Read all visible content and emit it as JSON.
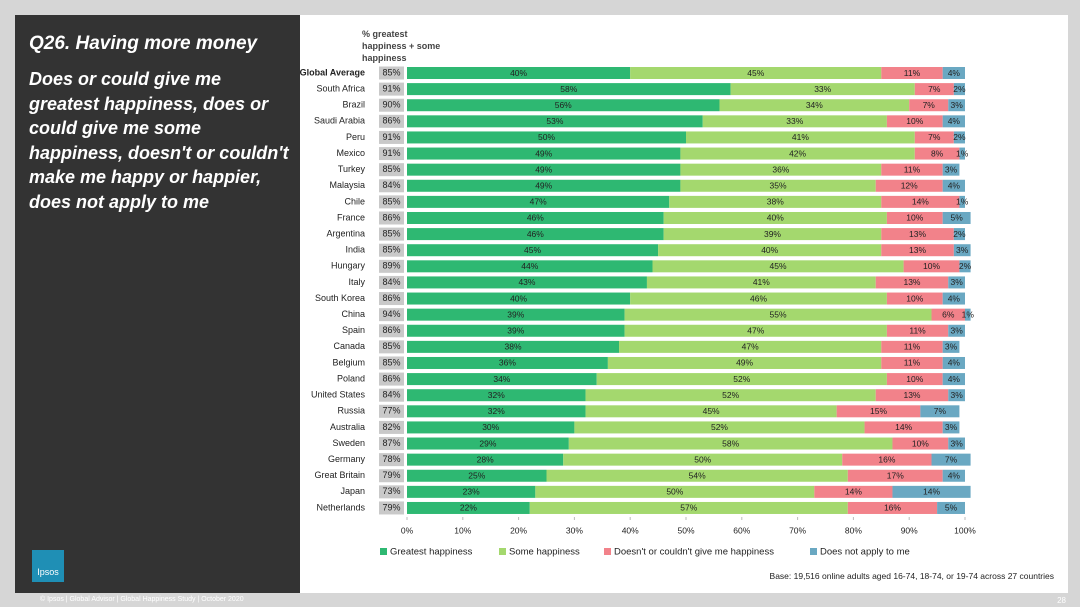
{
  "slide": {
    "title": "Q26. Having more money",
    "question": "Does or could give me greatest happiness, does or could give me some happiness, doesn't or couldn't make me happy or happier, does not apply to me",
    "base": "Base: 19,516 online adults aged 16-74, 18-74, or 19-74 across 27 countries",
    "footer": "© Ipsos | Global Advisor | Global Happiness Study | October 2020",
    "page": "28",
    "logo": "Ipsos"
  },
  "chart_data": {
    "type": "stacked-bar-horizontal",
    "categories": [
      "Global Average",
      "South Africa",
      "Brazil",
      "Saudi Arabia",
      "Peru",
      "Mexico",
      "Turkey",
      "Malaysia",
      "Chile",
      "France",
      "Argentina",
      "India",
      "Hungary",
      "Italy",
      "South Korea",
      "China",
      "Spain",
      "Canada",
      "Belgium",
      "Poland",
      "United States",
      "Russia",
      "Australia",
      "Sweden",
      "Germany",
      "Great Britain",
      "Japan",
      "Netherlands"
    ],
    "totals": {
      "label": "% greatest happiness + some happiness",
      "values": [
        85,
        91,
        90,
        86,
        91,
        91,
        85,
        84,
        85,
        86,
        85,
        85,
        89,
        84,
        86,
        94,
        86,
        85,
        85,
        86,
        84,
        77,
        82,
        87,
        78,
        79,
        73,
        79
      ],
      "value_labels": [
        "85%",
        "91%",
        "90%",
        "86%",
        "91%",
        "91%",
        "85%",
        "84%",
        "85%",
        "86%",
        "85%",
        "85%",
        "89%",
        "84%",
        "86%",
        "94%",
        "86%",
        "85%",
        "85%",
        "86%",
        "84%",
        "77%",
        "82%",
        "87%",
        "78%",
        "79%",
        "73%",
        "79%"
      ]
    },
    "series": [
      {
        "name": "Greatest happiness",
        "color": "#2eb872",
        "values": [
          40,
          58,
          56,
          53,
          50,
          49,
          49,
          49,
          47,
          46,
          46,
          45,
          44,
          43,
          40,
          39,
          39,
          38,
          36,
          34,
          32,
          32,
          30,
          29,
          28,
          25,
          23,
          22
        ],
        "value_labels": [
          "40%",
          "58%",
          "56%",
          "53%",
          "50%",
          "49%",
          "49%",
          "49%",
          "47%",
          "46%",
          "46%",
          "45%",
          "44%",
          "43%",
          "40%",
          "39%",
          "39%",
          "38%",
          "36%",
          "34%",
          "32%",
          "32%",
          "30%",
          "29%",
          "28%",
          "25%",
          "23%",
          "22%"
        ]
      },
      {
        "name": "Some happiness",
        "color": "#a4d86e",
        "values": [
          45,
          33,
          34,
          33,
          41,
          42,
          36,
          35,
          38,
          40,
          39,
          40,
          45,
          41,
          46,
          55,
          47,
          47,
          49,
          52,
          52,
          45,
          52,
          58,
          50,
          54,
          50,
          57
        ],
        "value_labels": [
          "45%",
          "33%",
          "34%",
          "33%",
          "41%",
          "42%",
          "36%",
          "35%",
          "38%",
          "40%",
          "39%",
          "40%",
          "45%",
          "41%",
          "46%",
          "55%",
          "47%",
          "47%",
          "49%",
          "52%",
          "52%",
          "45%",
          "52%",
          "58%",
          "50%",
          "54%",
          "50%",
          "57%"
        ]
      },
      {
        "name": "Doesn't or couldn't give me happiness",
        "color": "#f2828a",
        "values": [
          11,
          7,
          7,
          10,
          7,
          8,
          11,
          12,
          14,
          10,
          13,
          13,
          10,
          13,
          10,
          6,
          11,
          11,
          11,
          10,
          13,
          15,
          14,
          10,
          16,
          17,
          14,
          16
        ],
        "value_labels": [
          "11%",
          "7%",
          "7%",
          "10%",
          "7%",
          "8%",
          "11%",
          "12%",
          "14%",
          "10%",
          "13%",
          "13%",
          "10%",
          "13%",
          "10%",
          "6%",
          "11%",
          "11%",
          "11%",
          "10%",
          "13%",
          "15%",
          "14%",
          "10%",
          "16%",
          "17%",
          "14%",
          "16%"
        ]
      },
      {
        "name": "Does not apply to me",
        "color": "#6aa8c2",
        "values": [
          4,
          2,
          3,
          4,
          2,
          1,
          3,
          4,
          1,
          5,
          2,
          3,
          2,
          3,
          4,
          1,
          3,
          3,
          4,
          4,
          3,
          7,
          3,
          3,
          7,
          4,
          14,
          5
        ],
        "value_labels": [
          "4%",
          "2%",
          "3%",
          "4%",
          "2%",
          "1%",
          "3%",
          "4%",
          "1%",
          "5%",
          "2%",
          "3%",
          "2%",
          "3%",
          "4%",
          "1%",
          "3%",
          "3%",
          "4%",
          "4%",
          "3%",
          "7%",
          "3%",
          "3%",
          "7%",
          "4%",
          "14%",
          "5%"
        ]
      }
    ],
    "xlim": [
      0,
      100
    ],
    "xticks": [
      {
        "value": 0,
        "label": "0%"
      },
      {
        "value": 10,
        "label": "10%"
      },
      {
        "value": 20,
        "label": "20%"
      },
      {
        "value": 30,
        "label": "30%"
      },
      {
        "value": 40,
        "label": "40%"
      },
      {
        "value": 50,
        "label": "50%"
      },
      {
        "value": 60,
        "label": "60%"
      },
      {
        "value": 70,
        "label": "70%"
      },
      {
        "value": 80,
        "label": "80%"
      },
      {
        "value": 90,
        "label": "90%"
      },
      {
        "value": 100,
        "label": "100%"
      }
    ],
    "legend": "bottom",
    "grid": false
  }
}
